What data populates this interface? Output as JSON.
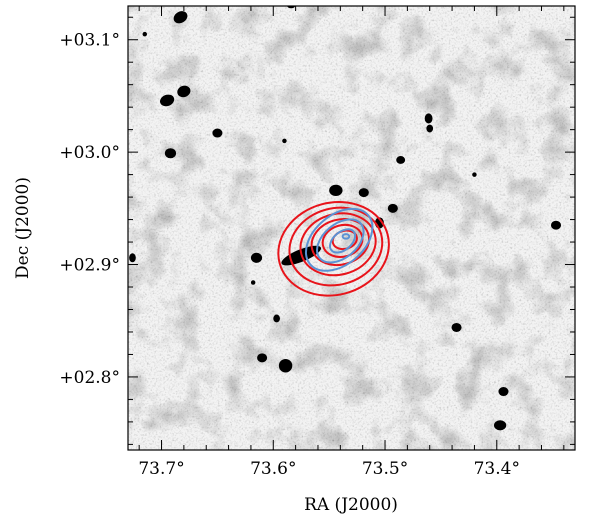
{
  "chart_data": {
    "type": "contour",
    "xlabel": "RA (J2000)",
    "ylabel": "Dec (J2000)",
    "xlim": [
      73.73,
      73.33
    ],
    "ylim": [
      2.735,
      3.13
    ],
    "x_ticks": [
      {
        "value": 73.7,
        "label": "73.7°"
      },
      {
        "value": 73.6,
        "label": "73.6°"
      },
      {
        "value": 73.5,
        "label": "73.5°"
      },
      {
        "value": 73.4,
        "label": "73.4°"
      }
    ],
    "y_ticks": [
      {
        "value": 3.1,
        "label": "+03.1°"
      },
      {
        "value": 3.0,
        "label": "+03.0°"
      },
      {
        "value": 2.9,
        "label": "+02.9°"
      },
      {
        "value": 2.8,
        "label": "+02.8°"
      }
    ],
    "background": "greyscale sky image with black point sources",
    "colors": {
      "red_contours": "#e8141b",
      "blue_contours": "#5b93d4",
      "sources": "#000000"
    },
    "red_contours": [
      {
        "ra": 73.546,
        "dec": 2.914,
        "a": 0.05,
        "b": 0.041,
        "angle": -15
      },
      {
        "ra": 73.544,
        "dec": 2.916,
        "a": 0.042,
        "b": 0.034,
        "angle": -15
      },
      {
        "ra": 73.542,
        "dec": 2.918,
        "a": 0.034,
        "b": 0.027,
        "angle": -15
      },
      {
        "ra": 73.54,
        "dec": 2.92,
        "a": 0.026,
        "b": 0.02,
        "angle": -15
      },
      {
        "ra": 73.538,
        "dec": 2.921,
        "a": 0.018,
        "b": 0.014,
        "angle": -15
      },
      {
        "ra": 73.536,
        "dec": 2.922,
        "a": 0.011,
        "b": 0.008,
        "angle": -15
      }
    ],
    "blue_contours": [
      {
        "ra": 73.541,
        "dec": 2.922,
        "a": 0.034,
        "b": 0.022,
        "angle": -40
      },
      {
        "ra": 73.54,
        "dec": 2.921,
        "a": 0.024,
        "b": 0.015,
        "angle": -40
      },
      {
        "ra": 73.538,
        "dec": 2.921,
        "a": 0.013,
        "b": 0.008,
        "angle": -40
      },
      {
        "ra": 73.535,
        "dec": 2.925,
        "a": 0.003,
        "b": 0.002,
        "angle": 0
      }
    ],
    "sources": [
      {
        "ra": 73.683,
        "dec": 3.12,
        "a": 0.0065,
        "b": 0.005,
        "angle": -30
      },
      {
        "ra": 73.584,
        "dec": 3.13,
        "a": 0.0035,
        "b": 0.002,
        "angle": 0
      },
      {
        "ra": 73.715,
        "dec": 3.105,
        "a": 0.002,
        "b": 0.002,
        "angle": 0
      },
      {
        "ra": 73.695,
        "dec": 3.046,
        "a": 0.0065,
        "b": 0.005,
        "angle": -20
      },
      {
        "ra": 73.68,
        "dec": 3.054,
        "a": 0.006,
        "b": 0.005,
        "angle": -20
      },
      {
        "ra": 73.65,
        "dec": 3.017,
        "a": 0.0045,
        "b": 0.004,
        "angle": 0
      },
      {
        "ra": 73.692,
        "dec": 2.999,
        "a": 0.005,
        "b": 0.0045,
        "angle": 0
      },
      {
        "ra": 73.461,
        "dec": 3.03,
        "a": 0.0035,
        "b": 0.0045,
        "angle": 0
      },
      {
        "ra": 73.46,
        "dec": 3.021,
        "a": 0.003,
        "b": 0.0035,
        "angle": 0
      },
      {
        "ra": 73.486,
        "dec": 2.993,
        "a": 0.004,
        "b": 0.0035,
        "angle": 0
      },
      {
        "ra": 73.544,
        "dec": 2.966,
        "a": 0.006,
        "b": 0.005,
        "angle": 0
      },
      {
        "ra": 73.519,
        "dec": 2.964,
        "a": 0.0045,
        "b": 0.004,
        "angle": 0
      },
      {
        "ra": 73.493,
        "dec": 2.95,
        "a": 0.0045,
        "b": 0.004,
        "angle": 0
      },
      {
        "ra": 73.505,
        "dec": 2.937,
        "a": 0.004,
        "b": 0.005,
        "angle": 0
      },
      {
        "ra": 73.575,
        "dec": 2.908,
        "a": 0.019,
        "b": 0.0055,
        "angle": -22
      },
      {
        "ra": 73.615,
        "dec": 2.906,
        "a": 0.005,
        "b": 0.0045,
        "angle": 0
      },
      {
        "ra": 73.347,
        "dec": 2.935,
        "a": 0.0045,
        "b": 0.004,
        "angle": 0
      },
      {
        "ra": 73.726,
        "dec": 2.906,
        "a": 0.003,
        "b": 0.004,
        "angle": 0
      },
      {
        "ra": 73.597,
        "dec": 2.852,
        "a": 0.003,
        "b": 0.0035,
        "angle": 0
      },
      {
        "ra": 73.618,
        "dec": 2.884,
        "a": 0.002,
        "b": 0.002,
        "angle": 0
      },
      {
        "ra": 73.436,
        "dec": 2.844,
        "a": 0.0045,
        "b": 0.004,
        "angle": 0
      },
      {
        "ra": 73.61,
        "dec": 2.817,
        "a": 0.0045,
        "b": 0.004,
        "angle": 0
      },
      {
        "ra": 73.589,
        "dec": 2.81,
        "a": 0.006,
        "b": 0.006,
        "angle": 0
      },
      {
        "ra": 73.394,
        "dec": 2.787,
        "a": 0.0045,
        "b": 0.004,
        "angle": 0
      },
      {
        "ra": 73.397,
        "dec": 2.757,
        "a": 0.0055,
        "b": 0.0045,
        "angle": 0
      },
      {
        "ra": 73.59,
        "dec": 3.01,
        "a": 0.002,
        "b": 0.002,
        "angle": 0
      },
      {
        "ra": 73.42,
        "dec": 2.98,
        "a": 0.002,
        "b": 0.002,
        "angle": 0
      }
    ]
  }
}
